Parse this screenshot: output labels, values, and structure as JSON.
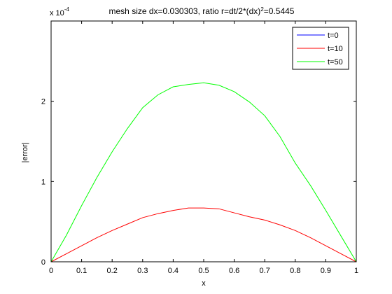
{
  "chart_data": {
    "type": "line",
    "title_parts": {
      "prefix": "mesh size dx=0.030303, ratio r=dt/2*(dx)",
      "superscript": "2",
      "suffix": "=0.5445"
    },
    "xlabel": "x",
    "ylabel": "|error|",
    "y_multiplier": {
      "base": "x 10",
      "exponent": "-4"
    },
    "xlim": [
      0,
      1
    ],
    "ylim": [
      0,
      3
    ],
    "xticks": [
      0,
      0.1,
      0.2,
      0.3,
      0.4,
      0.5,
      0.6,
      0.7,
      0.8,
      0.9,
      1
    ],
    "xtick_labels": [
      "0",
      "0.1",
      "0.2",
      "0.3",
      "0.4",
      "0.5",
      "0.6",
      "0.7",
      "0.8",
      "0.9",
      "1"
    ],
    "yticks": [
      0,
      1,
      2
    ],
    "ytick_labels": [
      "0",
      "1",
      "2"
    ],
    "grid": false,
    "legend_position": "top-right",
    "x": [
      0,
      0.05,
      0.1,
      0.15,
      0.2,
      0.25,
      0.3,
      0.35,
      0.4,
      0.45,
      0.5,
      0.55,
      0.6,
      0.65,
      0.7,
      0.75,
      0.8,
      0.85,
      0.9,
      0.95,
      1
    ],
    "series": [
      {
        "name": "t=0",
        "color": "#0000ff",
        "values": [
          0,
          0,
          0,
          0,
          0,
          0,
          0,
          0,
          0,
          0,
          0,
          0,
          0,
          0,
          0,
          0,
          0,
          0,
          0,
          0,
          0
        ]
      },
      {
        "name": "t=10",
        "color": "#ff0000",
        "values": [
          0,
          0.1,
          0.2,
          0.3,
          0.39,
          0.47,
          0.55,
          0.6,
          0.64,
          0.67,
          0.67,
          0.66,
          0.61,
          0.56,
          0.52,
          0.46,
          0.39,
          0.3,
          0.2,
          0.1,
          0
        ]
      },
      {
        "name": "t=50",
        "color": "#00ff00",
        "values": [
          0,
          0.33,
          0.7,
          1.05,
          1.37,
          1.66,
          1.92,
          2.08,
          2.18,
          2.21,
          2.23,
          2.2,
          2.12,
          1.99,
          1.82,
          1.56,
          1.23,
          0.95,
          0.64,
          0.32,
          0
        ]
      }
    ]
  }
}
